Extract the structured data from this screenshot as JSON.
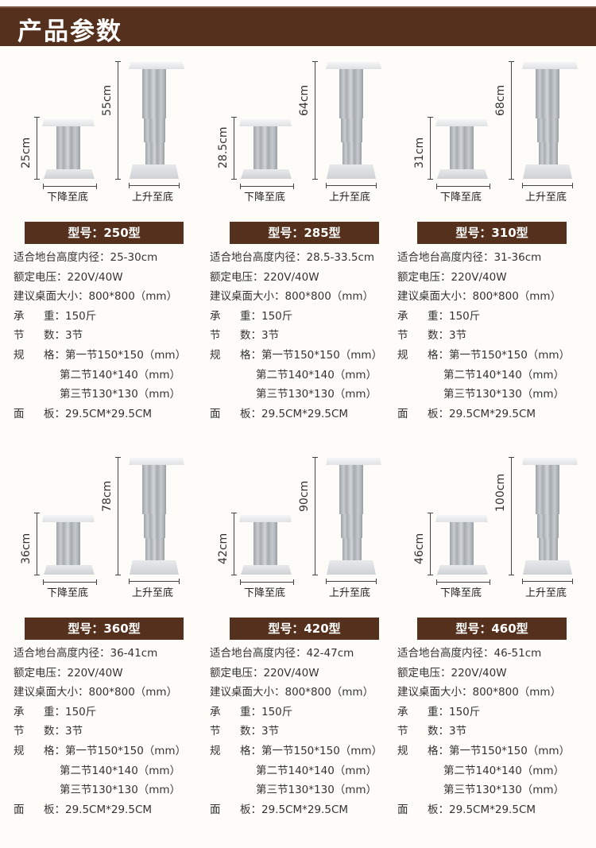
{
  "header": {
    "title": "产品参数"
  },
  "captions": {
    "lowered": "下降至底",
    "raised": "上升至底"
  },
  "labels": {
    "fit_height": "适合地台高度内径：",
    "voltage": "额定电压：",
    "table_size": "建议桌面大小：",
    "load_a": "承",
    "load_b": "重：",
    "sections_a": "节",
    "sections_b": "数：",
    "spec_a": "规",
    "spec_b": "格：",
    "panel_a": "面",
    "panel_b": "板："
  },
  "models": [
    {
      "model": "型号：250型",
      "low_height": "25cm",
      "high_height": "55cm",
      "fit_height": "25-30cm",
      "voltage": "220V/40W",
      "table_size": "800*800（mm）",
      "load": "150斤",
      "sections": "3节",
      "spec1": "第一节150*150（mm）",
      "spec2": "第二节140*140（mm）",
      "spec3": "第三节130*130（mm）",
      "panel": "29.5CM*29.5CM"
    },
    {
      "model": "型号：285型",
      "low_height": "28.5cm",
      "high_height": "64cm",
      "fit_height": "28.5-33.5cm",
      "voltage": "220V/40W",
      "table_size": "800*800（mm）",
      "load": "150斤",
      "sections": "3节",
      "spec1": "第一节150*150（mm）",
      "spec2": "第二节140*140（mm）",
      "spec3": "第三节130*130（mm）",
      "panel": "29.5CM*29.5CM"
    },
    {
      "model": "型号：310型",
      "low_height": "31cm",
      "high_height": "68cm",
      "fit_height": "31-36cm",
      "voltage": "220V/40W",
      "table_size": "800*800（mm）",
      "load": "150斤",
      "sections": "3节",
      "spec1": "第一节150*150（mm）",
      "spec2": "第二节140*140（mm）",
      "spec3": "第三节130*130（mm）",
      "panel": "29.5CM*29.5CM"
    },
    {
      "model": "型号：360型",
      "low_height": "36cm",
      "high_height": "78cm",
      "fit_height": "36-41cm",
      "voltage": "220V/40W",
      "table_size": "800*800（mm）",
      "load": "150斤",
      "sections": "3节",
      "spec1": "第一节150*150（mm）",
      "spec2": "第二节140*140（mm）",
      "spec3": "第三节130*130（mm）",
      "panel": "29.5CM*29.5CM"
    },
    {
      "model": "型号：420型",
      "low_height": "42cm",
      "high_height": "90cm",
      "fit_height": "42-47cm",
      "voltage": "220V/40W",
      "table_size": "800*800（mm）",
      "load": "150斤",
      "sections": "3节",
      "spec1": "第一节150*150（mm）",
      "spec2": "第二节140*140（mm）",
      "spec3": "第三节130*130（mm）",
      "panel": "29.5CM*29.5CM"
    },
    {
      "model": "型号：460型",
      "low_height": "46cm",
      "high_height": "100cm",
      "fit_height": "46-51cm",
      "voltage": "220V/40W",
      "table_size": "800*800（mm）",
      "load": "150斤",
      "sections": "3节",
      "spec1": "第一节150*150（mm）",
      "spec2": "第二节140*140（mm）",
      "spec3": "第三节130*130（mm）",
      "panel": "29.5CM*29.5CM"
    }
  ],
  "colors": {
    "brand_brown": "#55301c",
    "background": "#fefcf9",
    "aluminum": "#b8bcc0"
  }
}
